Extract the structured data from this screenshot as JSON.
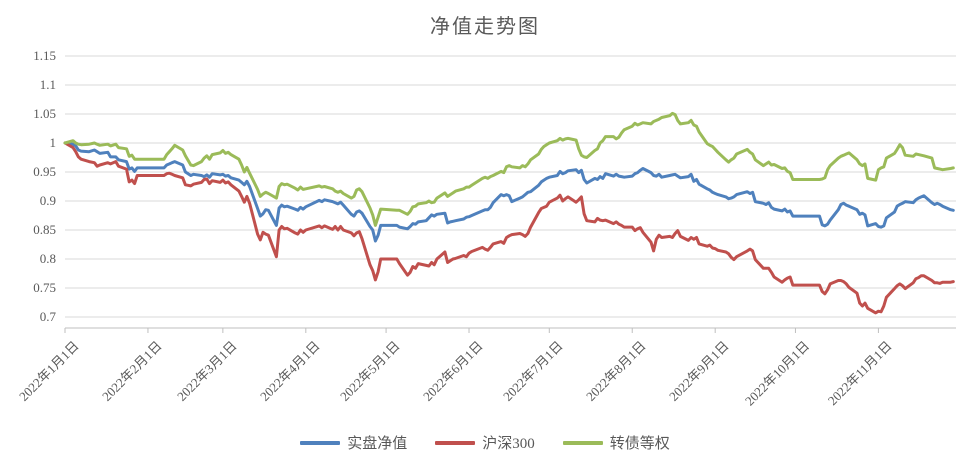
{
  "title": "净值走势图",
  "legend": {
    "items": [
      {
        "label": "实盘净值",
        "color": "#4F81BD"
      },
      {
        "label": "沪深300",
        "color": "#C0504D"
      },
      {
        "label": "转债等权",
        "color": "#9BBB59"
      }
    ]
  },
  "colors": {
    "grid": "#D9D9D9",
    "axis": "#BFBFBF",
    "text": "#595959",
    "background": "#FFFFFF"
  },
  "chart_data": {
    "type": "line",
    "title": "净值走势图",
    "grid": true,
    "legend_position": "bottom",
    "y_axis": {
      "min": 0.7,
      "max": 1.15,
      "step": 0.05,
      "tick_labels": [
        "1.15",
        "1.1",
        "1.05",
        "1",
        "0.95",
        "0.9",
        "0.85",
        "0.8",
        "0.75",
        "0.7"
      ]
    },
    "x_axis": {
      "type": "date",
      "year": 2022,
      "tick_labels": [
        {
          "label": "2022年1月1日",
          "date": "01-01"
        },
        {
          "label": "2022年2月1日",
          "date": "02-01"
        },
        {
          "label": "2022年3月1日",
          "date": "03-01"
        },
        {
          "label": "2022年4月1日",
          "date": "04-01"
        },
        {
          "label": "2022年5月1日",
          "date": "05-01"
        },
        {
          "label": "2022年6月1日",
          "date": "06-01"
        },
        {
          "label": "2022年7月1日",
          "date": "07-01"
        },
        {
          "label": "2022年8月1日",
          "date": "08-01"
        },
        {
          "label": "2022年9月1日",
          "date": "09-01"
        },
        {
          "label": "2022年10月1日",
          "date": "10-01"
        },
        {
          "label": "2022年11月1日",
          "date": "11-01"
        }
      ]
    },
    "dates": [
      "01-01",
      "01-04",
      "01-05",
      "01-06",
      "01-07",
      "01-10",
      "01-12",
      "01-13",
      "01-14",
      "01-17",
      "01-18",
      "01-20",
      "01-21",
      "01-24",
      "01-25",
      "01-26",
      "01-27",
      "01-28",
      "02-07",
      "02-08",
      "02-09",
      "02-10",
      "02-11",
      "02-14",
      "02-15",
      "02-16",
      "02-17",
      "02-18",
      "02-21",
      "02-22",
      "02-23",
      "02-24",
      "02-25",
      "02-28",
      "03-01",
      "03-02",
      "03-03",
      "03-04",
      "03-07",
      "03-08",
      "03-09",
      "03-10",
      "03-11",
      "03-14",
      "03-15",
      "03-16",
      "03-17",
      "03-18",
      "03-21",
      "03-22",
      "03-23",
      "03-24",
      "03-25",
      "03-28",
      "03-29",
      "03-30",
      "03-31",
      "04-01",
      "04-06",
      "04-07",
      "04-08",
      "04-11",
      "04-12",
      "04-13",
      "04-14",
      "04-15",
      "04-18",
      "04-19",
      "04-20",
      "04-21",
      "04-22",
      "04-25",
      "04-26",
      "04-27",
      "04-28",
      "04-29",
      "05-05",
      "05-06",
      "05-09",
      "05-10",
      "05-11",
      "05-12",
      "05-13",
      "05-16",
      "05-17",
      "05-18",
      "05-19",
      "05-20",
      "05-23",
      "05-24",
      "05-25",
      "05-26",
      "05-27",
      "05-30",
      "05-31",
      "06-01",
      "06-02",
      "06-06",
      "06-07",
      "06-08",
      "06-09",
      "06-10",
      "06-13",
      "06-14",
      "06-15",
      "06-16",
      "06-17",
      "06-20",
      "06-21",
      "06-22",
      "06-23",
      "06-24",
      "06-27",
      "06-28",
      "06-29",
      "06-30",
      "07-01",
      "07-04",
      "07-05",
      "07-06",
      "07-07",
      "07-08",
      "07-11",
      "07-12",
      "07-13",
      "07-14",
      "07-15",
      "07-18",
      "07-19",
      "07-20",
      "07-21",
      "07-22",
      "07-25",
      "07-26",
      "07-27",
      "07-28",
      "07-29",
      "08-01",
      "08-02",
      "08-03",
      "08-04",
      "08-05",
      "08-08",
      "08-09",
      "08-10",
      "08-11",
      "08-12",
      "08-15",
      "08-16",
      "08-17",
      "08-18",
      "08-19",
      "08-22",
      "08-23",
      "08-24",
      "08-25",
      "08-26",
      "08-29",
      "08-30",
      "08-31",
      "09-01",
      "09-02",
      "09-05",
      "09-06",
      "09-07",
      "09-08",
      "09-09",
      "09-13",
      "09-14",
      "09-15",
      "09-16",
      "09-19",
      "09-20",
      "09-21",
      "09-22",
      "09-23",
      "09-26",
      "09-27",
      "09-28",
      "09-29",
      "09-30",
      "10-10",
      "10-11",
      "10-12",
      "10-13",
      "10-14",
      "10-17",
      "10-18",
      "10-19",
      "10-20",
      "10-21",
      "10-24",
      "10-25",
      "10-26",
      "10-27",
      "10-28",
      "10-31",
      "11-01",
      "11-02",
      "11-03",
      "11-04",
      "11-07",
      "11-08",
      "11-09",
      "11-10",
      "11-11",
      "11-14",
      "11-15",
      "11-16",
      "11-17",
      "11-18",
      "11-21",
      "11-22",
      "11-23",
      "11-24",
      "11-25",
      "11-28",
      "11-29"
    ],
    "series": [
      {
        "name": "实盘净值",
        "color": "#4F81BD",
        "values": [
          1.0,
          0.998,
          0.995,
          0.988,
          0.986,
          0.985,
          0.988,
          0.985,
          0.982,
          0.984,
          0.976,
          0.976,
          0.971,
          0.968,
          0.955,
          0.957,
          0.951,
          0.957,
          0.957,
          0.962,
          0.964,
          0.966,
          0.968,
          0.962,
          0.95,
          0.947,
          0.944,
          0.946,
          0.944,
          0.942,
          0.945,
          0.941,
          0.947,
          0.945,
          0.946,
          0.943,
          0.944,
          0.94,
          0.936,
          0.932,
          0.928,
          0.934,
          0.925,
          0.887,
          0.874,
          0.878,
          0.885,
          0.884,
          0.858,
          0.888,
          0.893,
          0.89,
          0.891,
          0.886,
          0.884,
          0.889,
          0.886,
          0.89,
          0.901,
          0.899,
          0.902,
          0.899,
          0.897,
          0.895,
          0.898,
          0.893,
          0.877,
          0.874,
          0.881,
          0.883,
          0.879,
          0.856,
          0.85,
          0.831,
          0.841,
          0.858,
          0.858,
          0.855,
          0.852,
          0.856,
          0.861,
          0.86,
          0.864,
          0.866,
          0.871,
          0.876,
          0.874,
          0.877,
          0.879,
          0.862,
          0.864,
          0.865,
          0.866,
          0.869,
          0.872,
          0.873,
          0.875,
          0.883,
          0.885,
          0.885,
          0.889,
          0.897,
          0.911,
          0.909,
          0.911,
          0.909,
          0.899,
          0.905,
          0.907,
          0.911,
          0.915,
          0.916,
          0.927,
          0.933,
          0.936,
          0.939,
          0.941,
          0.944,
          0.951,
          0.947,
          0.949,
          0.952,
          0.954,
          0.949,
          0.953,
          0.937,
          0.931,
          0.939,
          0.937,
          0.942,
          0.939,
          0.947,
          0.943,
          0.946,
          0.943,
          0.942,
          0.941,
          0.943,
          0.947,
          0.949,
          0.953,
          0.956,
          0.949,
          0.944,
          0.943,
          0.946,
          0.941,
          0.944,
          0.945,
          0.946,
          0.943,
          0.94,
          0.942,
          0.946,
          0.934,
          0.937,
          0.929,
          0.921,
          0.919,
          0.915,
          0.913,
          0.911,
          0.907,
          0.904,
          0.905,
          0.907,
          0.911,
          0.916,
          0.913,
          0.915,
          0.899,
          0.896,
          0.894,
          0.897,
          0.889,
          0.886,
          0.883,
          0.886,
          0.881,
          0.883,
          0.874,
          0.874,
          0.859,
          0.857,
          0.86,
          0.867,
          0.885,
          0.894,
          0.896,
          0.893,
          0.891,
          0.885,
          0.877,
          0.879,
          0.876,
          0.857,
          0.861,
          0.856,
          0.855,
          0.857,
          0.871,
          0.881,
          0.891,
          0.894,
          0.896,
          0.899,
          0.897,
          0.902,
          0.905,
          0.907,
          0.909,
          0.897,
          0.894,
          0.896,
          0.894,
          0.891,
          0.885,
          0.884
        ]
      },
      {
        "name": "沪深300",
        "color": "#C0504D",
        "values": [
          1.0,
          0.992,
          0.985,
          0.976,
          0.972,
          0.968,
          0.966,
          0.96,
          0.962,
          0.966,
          0.964,
          0.968,
          0.96,
          0.955,
          0.933,
          0.936,
          0.93,
          0.944,
          0.944,
          0.947,
          0.948,
          0.946,
          0.944,
          0.94,
          0.928,
          0.927,
          0.926,
          0.929,
          0.932,
          0.937,
          0.938,
          0.93,
          0.935,
          0.932,
          0.936,
          0.931,
          0.933,
          0.928,
          0.917,
          0.908,
          0.898,
          0.908,
          0.896,
          0.843,
          0.833,
          0.846,
          0.843,
          0.841,
          0.804,
          0.85,
          0.856,
          0.852,
          0.853,
          0.845,
          0.843,
          0.85,
          0.846,
          0.85,
          0.857,
          0.854,
          0.857,
          0.851,
          0.856,
          0.85,
          0.856,
          0.85,
          0.845,
          0.84,
          0.845,
          0.847,
          0.835,
          0.79,
          0.78,
          0.764,
          0.778,
          0.8,
          0.8,
          0.792,
          0.772,
          0.777,
          0.787,
          0.784,
          0.792,
          0.789,
          0.788,
          0.794,
          0.79,
          0.8,
          0.812,
          0.794,
          0.797,
          0.8,
          0.801,
          0.806,
          0.804,
          0.81,
          0.813,
          0.82,
          0.817,
          0.815,
          0.82,
          0.826,
          0.83,
          0.827,
          0.837,
          0.84,
          0.842,
          0.844,
          0.842,
          0.839,
          0.844,
          0.855,
          0.88,
          0.887,
          0.889,
          0.891,
          0.898,
          0.905,
          0.91,
          0.9,
          0.904,
          0.907,
          0.898,
          0.902,
          0.907,
          0.878,
          0.866,
          0.864,
          0.87,
          0.867,
          0.866,
          0.867,
          0.861,
          0.864,
          0.86,
          0.858,
          0.855,
          0.855,
          0.849,
          0.852,
          0.854,
          0.846,
          0.829,
          0.814,
          0.834,
          0.841,
          0.837,
          0.839,
          0.837,
          0.844,
          0.849,
          0.839,
          0.832,
          0.837,
          0.834,
          0.837,
          0.826,
          0.822,
          0.824,
          0.819,
          0.818,
          0.815,
          0.812,
          0.809,
          0.803,
          0.799,
          0.804,
          0.814,
          0.817,
          0.814,
          0.799,
          0.784,
          0.784,
          0.784,
          0.777,
          0.769,
          0.76,
          0.764,
          0.767,
          0.769,
          0.755,
          0.755,
          0.744,
          0.74,
          0.747,
          0.757,
          0.763,
          0.763,
          0.761,
          0.757,
          0.751,
          0.741,
          0.724,
          0.719,
          0.724,
          0.715,
          0.707,
          0.71,
          0.709,
          0.719,
          0.734,
          0.749,
          0.754,
          0.757,
          0.754,
          0.749,
          0.759,
          0.766,
          0.768,
          0.771,
          0.771,
          0.763,
          0.759,
          0.759,
          0.758,
          0.76,
          0.76,
          0.761
        ]
      },
      {
        "name": "转债等权",
        "color": "#9BBB59",
        "values": [
          1.0,
          1.004,
          1.0,
          0.998,
          0.997,
          0.998,
          1.0,
          0.998,
          0.996,
          0.998,
          0.995,
          0.998,
          0.992,
          0.99,
          0.977,
          0.979,
          0.972,
          0.972,
          0.972,
          0.98,
          0.985,
          0.99,
          0.996,
          0.988,
          0.978,
          0.97,
          0.962,
          0.961,
          0.968,
          0.974,
          0.978,
          0.972,
          0.98,
          0.983,
          0.987,
          0.982,
          0.984,
          0.98,
          0.972,
          0.962,
          0.95,
          0.958,
          0.948,
          0.92,
          0.908,
          0.912,
          0.915,
          0.913,
          0.905,
          0.925,
          0.93,
          0.928,
          0.929,
          0.922,
          0.919,
          0.924,
          0.92,
          0.921,
          0.926,
          0.924,
          0.925,
          0.921,
          0.917,
          0.915,
          0.917,
          0.913,
          0.905,
          0.908,
          0.919,
          0.921,
          0.916,
          0.888,
          0.876,
          0.858,
          0.872,
          0.886,
          0.884,
          0.884,
          0.877,
          0.882,
          0.89,
          0.891,
          0.895,
          0.897,
          0.9,
          0.897,
          0.898,
          0.905,
          0.914,
          0.908,
          0.911,
          0.914,
          0.917,
          0.921,
          0.924,
          0.924,
          0.927,
          0.939,
          0.941,
          0.939,
          0.942,
          0.944,
          0.951,
          0.949,
          0.959,
          0.961,
          0.959,
          0.957,
          0.961,
          0.959,
          0.964,
          0.971,
          0.981,
          0.989,
          0.994,
          0.997,
          1.0,
          1.004,
          1.008,
          1.005,
          1.007,
          1.008,
          1.005,
          0.99,
          0.979,
          0.976,
          0.975,
          0.987,
          0.99,
          1.0,
          1.004,
          1.011,
          1.011,
          1.007,
          1.01,
          1.017,
          1.023,
          1.029,
          1.034,
          1.031,
          1.033,
          1.035,
          1.033,
          1.037,
          1.039,
          1.041,
          1.044,
          1.047,
          1.051,
          1.049,
          1.039,
          1.033,
          1.035,
          1.039,
          1.031,
          1.029,
          1.019,
          0.999,
          0.996,
          0.994,
          0.989,
          0.984,
          0.971,
          0.967,
          0.971,
          0.974,
          0.981,
          0.989,
          0.984,
          0.981,
          0.971,
          0.961,
          0.964,
          0.967,
          0.962,
          0.963,
          0.956,
          0.957,
          0.951,
          0.949,
          0.937,
          0.937,
          0.938,
          0.94,
          0.954,
          0.961,
          0.974,
          0.977,
          0.979,
          0.981,
          0.983,
          0.971,
          0.964,
          0.961,
          0.964,
          0.939,
          0.936,
          0.954,
          0.957,
          0.959,
          0.974,
          0.982,
          0.989,
          0.997,
          0.992,
          0.979,
          0.977,
          0.981,
          0.98,
          0.979,
          0.978,
          0.974,
          0.957,
          0.956,
          0.955,
          0.954,
          0.956,
          0.957
        ]
      }
    ]
  }
}
